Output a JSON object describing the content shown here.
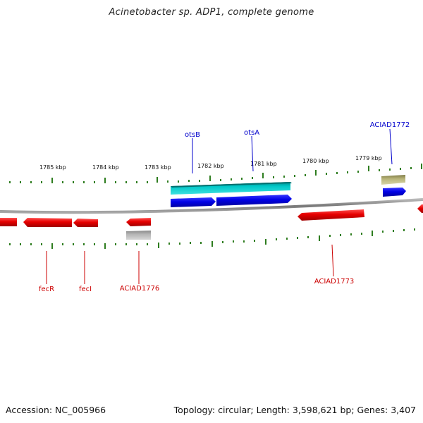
{
  "title": "Acinetobacter sp. ADP1, complete genome",
  "footer": {
    "accession": "Accession: NC_005966",
    "summary": "Topology: circular; Length: 3,598,621 bp; Genes: 3,407"
  },
  "colors": {
    "backbone": "#888888",
    "tick": "#2e7d1f",
    "forward_cds": "#0000e6",
    "reverse_cds": "#e60000",
    "rna": "#00c0c0",
    "misc_forward": "#b8b478",
    "misc_reverse": "#b4b4b4"
  },
  "scale_labels": [
    "1785 kbp",
    "1784 kbp",
    "1783 kbp",
    "1782 kbp",
    "1781 kbp",
    "1780 kbp",
    "1779 kbp"
  ],
  "gene_labels": {
    "otsB": "otsB",
    "otsA": "otsA",
    "aciad1772": "ACIAD1772",
    "fecR": "fecR",
    "fecI": "fecI",
    "aciad1776": "ACIAD1776",
    "aciad1773": "ACIAD1773"
  }
}
